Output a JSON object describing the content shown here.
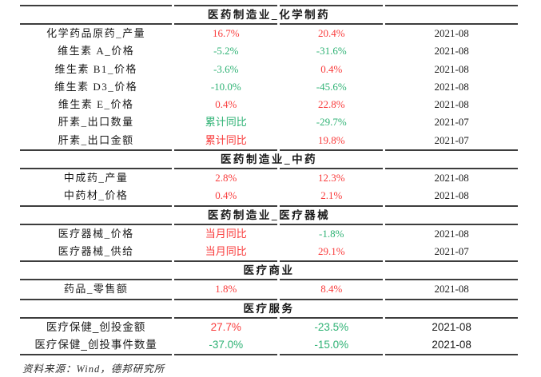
{
  "colors": {
    "red": "#f93b3b",
    "green": "#2eb274",
    "line": "#3d3d3d",
    "text": "#1a1a1a"
  },
  "sections": [
    {
      "title": "医药制造业_化学制药",
      "rows": [
        {
          "name": "化学药品原药_产量",
          "v1": "16.7%",
          "c1": "red",
          "v2": "20.4%",
          "c2": "red",
          "date": "2021-08"
        },
        {
          "name": "维生素 A_价格",
          "v1": "-5.2%",
          "c1": "green",
          "v2": "-31.6%",
          "c2": "green",
          "date": "2021-08"
        },
        {
          "name": "维生素 B1_价格",
          "v1": "-3.6%",
          "c1": "green",
          "v2": "0.4%",
          "c2": "red",
          "date": "2021-08"
        },
        {
          "name": "维生素 D3_价格",
          "v1": "-10.0%",
          "c1": "green",
          "v2": "-45.6%",
          "c2": "green",
          "date": "2021-08"
        },
        {
          "name": "维生素 E_价格",
          "v1": "0.4%",
          "c1": "red",
          "v2": "22.8%",
          "c2": "red",
          "date": "2021-08"
        },
        {
          "name": "肝素_出口数量",
          "v1": "累计同比",
          "c1": "green",
          "v2": "-29.7%",
          "c2": "green",
          "date": "2021-07"
        },
        {
          "name": "肝素_出口金额",
          "v1": "累计同比",
          "c1": "red",
          "v2": "19.8%",
          "c2": "red",
          "date": "2021-07"
        }
      ]
    },
    {
      "title": "医药制造业_中药",
      "rows": [
        {
          "name": "中成药_产量",
          "v1": "2.8%",
          "c1": "red",
          "v2": "12.3%",
          "c2": "red",
          "date": "2021-08"
        },
        {
          "name": "中药材_价格",
          "v1": "0.4%",
          "c1": "red",
          "v2": "2.1%",
          "c2": "red",
          "date": "2021-08"
        }
      ]
    },
    {
      "title": "医药制造业_医疗器械",
      "rows": [
        {
          "name": "医疗器械_价格",
          "v1": "当月同比",
          "c1": "red",
          "v2": "-1.8%",
          "c2": "green",
          "date": "2021-08"
        },
        {
          "name": "医疗器械_供给",
          "v1": "当月同比",
          "c1": "red",
          "v2": "29.1%",
          "c2": "red",
          "date": "2021-07"
        }
      ]
    },
    {
      "title": "医疗商业",
      "rows": [
        {
          "name": "药品_零售额",
          "v1": "1.8%",
          "c1": "red",
          "v2": "8.4%",
          "c2": "red",
          "date": "2021-08"
        }
      ]
    },
    {
      "title": "医疗服务",
      "rows": [
        {
          "name": "医疗保健_创投金额",
          "v1": "27.7%",
          "c1": "red",
          "v2": "-23.5%",
          "c2": "green",
          "date": "2021-08"
        },
        {
          "name": "医疗保健_创投事件数量",
          "v1": "-37.0%",
          "c1": "green",
          "v2": "-15.0%",
          "c2": "green",
          "date": "2021-08"
        }
      ]
    }
  ],
  "footer": {
    "source": "资料来源：Wind，德邦研究所"
  }
}
